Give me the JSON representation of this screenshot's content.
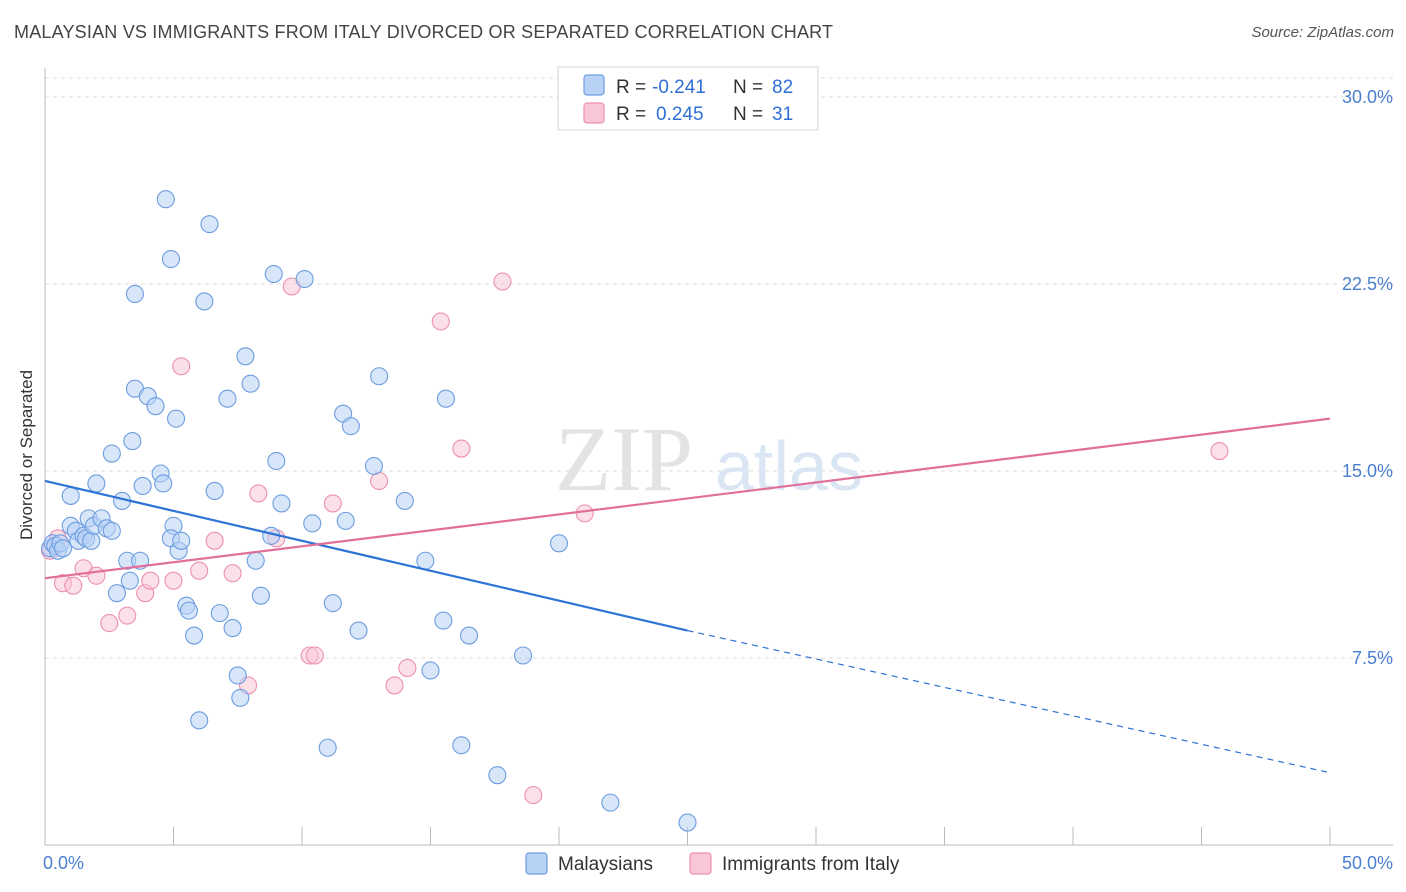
{
  "title": "MALAYSIAN VS IMMIGRANTS FROM ITALY DIVORCED OR SEPARATED CORRELATION CHART",
  "source": "Source: ZipAtlas.com",
  "watermark": {
    "zip": "ZIP",
    "atlas": "atlas"
  },
  "colors": {
    "blue_fill": "#b8d2f5",
    "blue_stroke": "#6d9de0",
    "blue_line": "#2e74d6",
    "pink_fill": "#f9c6d6",
    "pink_stroke": "#ec90b0",
    "pink_line": "#e0709a",
    "tick_text": "#4a7fcf",
    "grid": "#dddddd"
  },
  "legend": {
    "rows": [
      {
        "r_label": "R = ",
        "r_value": "-0.241",
        "n_label": "N = ",
        "n_value": "82"
      },
      {
        "r_label": "R = ",
        "r_value": "0.245",
        "n_label": "N = ",
        "n_value": "31"
      }
    ]
  },
  "chart_data": {
    "type": "scatter",
    "title": "MALAYSIAN VS IMMIGRANTS FROM ITALY DIVORCED OR SEPARATED CORRELATION CHART",
    "xlabel": "",
    "ylabel": "Divorced or Separated",
    "xlim": [
      0,
      50
    ],
    "ylim": [
      0,
      31
    ],
    "x_tick_labels": [
      "0.0%",
      "50.0%"
    ],
    "y_ticks": [
      7.5,
      15.0,
      22.5,
      30.0
    ],
    "y_tick_labels": [
      "7.5%",
      "15.0%",
      "22.5%",
      "30.0%"
    ],
    "grid": "horizontal dashed",
    "legend_placement": "bottom",
    "series": [
      {
        "name": "Malaysians",
        "r": -0.241,
        "n": 82,
        "trend": {
          "x0": 0,
          "y0": 14.6,
          "x1": 25,
          "y1": 8.6,
          "dash_to_x": 50,
          "dash_to_y": 2.9
        },
        "points": [
          [
            0.2,
            11.9
          ],
          [
            0.3,
            12.1
          ],
          [
            0.4,
            12.0
          ],
          [
            0.5,
            11.8
          ],
          [
            0.6,
            12.1
          ],
          [
            0.7,
            11.9
          ],
          [
            1.0,
            12.8
          ],
          [
            1.2,
            12.6
          ],
          [
            1.3,
            12.2
          ],
          [
            1.5,
            12.4
          ],
          [
            1.6,
            12.3
          ],
          [
            1.8,
            12.2
          ],
          [
            1.7,
            13.1
          ],
          [
            1.9,
            12.8
          ],
          [
            2.0,
            14.5
          ],
          [
            2.2,
            13.1
          ],
          [
            2.4,
            12.7
          ],
          [
            2.6,
            12.6
          ],
          [
            1.0,
            14.0
          ],
          [
            2.6,
            15.7
          ],
          [
            3.0,
            13.8
          ],
          [
            3.2,
            11.4
          ],
          [
            3.3,
            10.6
          ],
          [
            2.8,
            10.1
          ],
          [
            3.4,
            16.2
          ],
          [
            3.7,
            11.4
          ],
          [
            3.5,
            18.3
          ],
          [
            3.8,
            14.4
          ],
          [
            4.0,
            18.0
          ],
          [
            4.3,
            17.6
          ],
          [
            4.5,
            14.9
          ],
          [
            4.6,
            14.5
          ],
          [
            3.5,
            22.1
          ],
          [
            4.7,
            25.9
          ],
          [
            4.9,
            23.5
          ],
          [
            5.1,
            17.1
          ],
          [
            5.0,
            12.8
          ],
          [
            4.9,
            12.3
          ],
          [
            5.2,
            11.8
          ],
          [
            5.3,
            12.2
          ],
          [
            5.5,
            9.6
          ],
          [
            5.6,
            9.4
          ],
          [
            5.8,
            8.4
          ],
          [
            6.0,
            5.0
          ],
          [
            6.2,
            21.8
          ],
          [
            6.4,
            24.9
          ],
          [
            6.6,
            14.2
          ],
          [
            6.8,
            9.3
          ],
          [
            7.1,
            17.9
          ],
          [
            7.3,
            8.7
          ],
          [
            7.5,
            6.8
          ],
          [
            7.6,
            5.9
          ],
          [
            7.8,
            19.6
          ],
          [
            8.0,
            18.5
          ],
          [
            8.2,
            11.4
          ],
          [
            8.4,
            10.0
          ],
          [
            8.8,
            12.4
          ],
          [
            9.0,
            15.4
          ],
          [
            9.2,
            13.7
          ],
          [
            8.9,
            22.9
          ],
          [
            10.1,
            22.7
          ],
          [
            10.4,
            12.9
          ],
          [
            11.0,
            3.9
          ],
          [
            11.2,
            9.7
          ],
          [
            11.6,
            17.3
          ],
          [
            11.7,
            13.0
          ],
          [
            11.9,
            16.8
          ],
          [
            12.2,
            8.6
          ],
          [
            12.8,
            15.2
          ],
          [
            13.0,
            18.8
          ],
          [
            14.0,
            13.8
          ],
          [
            14.8,
            11.4
          ],
          [
            15.0,
            7.0
          ],
          [
            15.6,
            17.9
          ],
          [
            15.5,
            9.0
          ],
          [
            16.2,
            4.0
          ],
          [
            16.5,
            8.4
          ],
          [
            17.6,
            2.8
          ],
          [
            18.6,
            7.6
          ],
          [
            20.0,
            12.1
          ],
          [
            22.0,
            1.7
          ],
          [
            25.0,
            0.9
          ]
        ]
      },
      {
        "name": "Immigrants from Italy",
        "r": 0.245,
        "n": 31,
        "trend": {
          "x0": 0,
          "y0": 10.7,
          "x1": 50,
          "y1": 17.1
        },
        "points": [
          [
            0.2,
            11.8
          ],
          [
            0.5,
            12.3
          ],
          [
            0.7,
            10.5
          ],
          [
            1.1,
            10.4
          ],
          [
            1.5,
            11.1
          ],
          [
            2.0,
            10.8
          ],
          [
            2.5,
            8.9
          ],
          [
            3.2,
            9.2
          ],
          [
            3.9,
            10.1
          ],
          [
            4.1,
            10.6
          ],
          [
            5.0,
            10.6
          ],
          [
            5.3,
            19.2
          ],
          [
            6.0,
            11.0
          ],
          [
            6.6,
            12.2
          ],
          [
            7.3,
            10.9
          ],
          [
            7.9,
            6.4
          ],
          [
            8.3,
            14.1
          ],
          [
            9.0,
            12.3
          ],
          [
            9.6,
            22.4
          ],
          [
            10.3,
            7.6
          ],
          [
            10.5,
            7.6
          ],
          [
            11.2,
            13.7
          ],
          [
            13.0,
            14.6
          ],
          [
            13.6,
            6.4
          ],
          [
            14.1,
            7.1
          ],
          [
            15.4,
            21.0
          ],
          [
            16.2,
            15.9
          ],
          [
            17.8,
            22.6
          ],
          [
            19.0,
            2.0
          ],
          [
            21.0,
            13.3
          ],
          [
            45.7,
            15.8
          ]
        ]
      }
    ]
  }
}
